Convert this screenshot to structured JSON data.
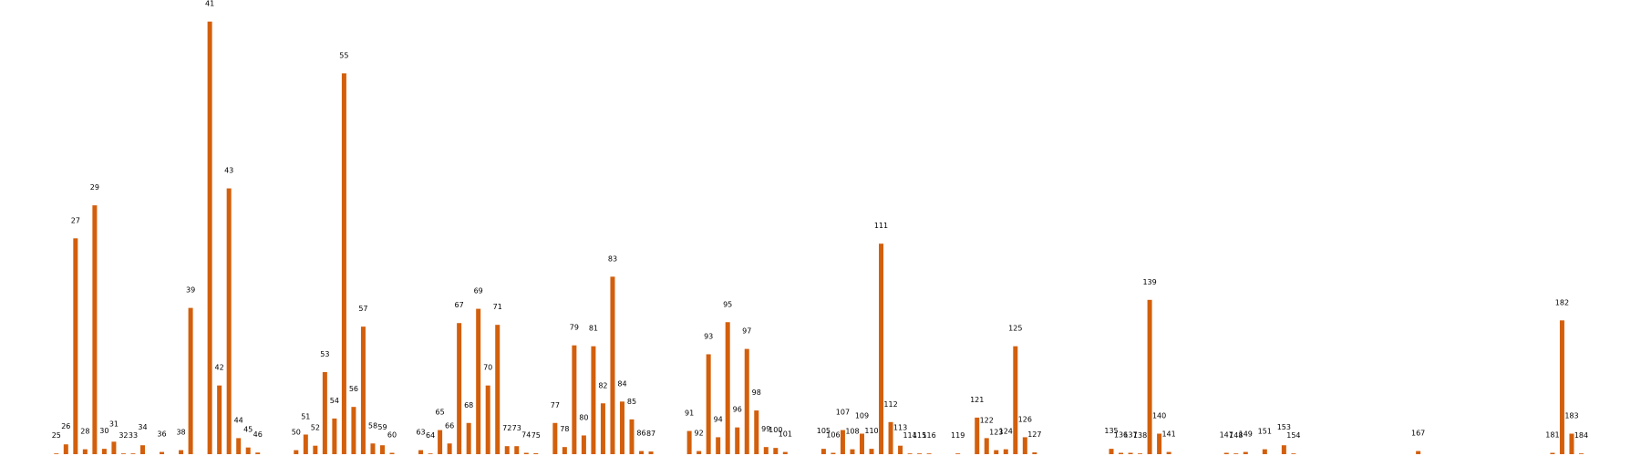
{
  "chart_data": {
    "type": "bar",
    "color": "#d35f0c",
    "x": [
      25,
      26,
      27,
      28,
      29,
      30,
      31,
      32,
      33,
      34,
      36,
      38,
      39,
      41,
      42,
      43,
      44,
      45,
      46,
      50,
      51,
      52,
      53,
      54,
      55,
      56,
      57,
      58,
      59,
      60,
      63,
      64,
      65,
      66,
      67,
      68,
      69,
      70,
      71,
      72,
      73,
      74,
      75,
      77,
      78,
      79,
      80,
      81,
      82,
      83,
      84,
      85,
      86,
      87,
      91,
      92,
      93,
      94,
      95,
      96,
      97,
      98,
      99,
      100,
      101,
      105,
      106,
      107,
      108,
      109,
      110,
      111,
      112,
      113,
      114,
      115,
      116,
      119,
      121,
      122,
      123,
      124,
      125,
      126,
      127,
      135,
      136,
      137,
      138,
      139,
      140,
      141,
      147,
      148,
      149,
      151,
      153,
      154,
      167,
      181,
      182,
      183,
      184
    ],
    "values": [
      0.08,
      1.1,
      24.2,
      0.55,
      27.9,
      0.6,
      1.4,
      0.08,
      0.08,
      1.0,
      0.25,
      0.45,
      16.4,
      48.5,
      7.7,
      29.8,
      1.8,
      0.75,
      0.18,
      0.45,
      2.2,
      0.95,
      9.2,
      4.0,
      42.7,
      5.3,
      14.3,
      1.2,
      1.0,
      0.15,
      0.45,
      0.08,
      2.7,
      1.2,
      14.7,
      3.5,
      16.3,
      7.7,
      14.5,
      0.9,
      0.9,
      0.15,
      0.1,
      3.5,
      0.8,
      12.2,
      2.1,
      12.1,
      5.7,
      19.9,
      5.9,
      3.9,
      0.35,
      0.3,
      2.6,
      0.35,
      11.2,
      1.9,
      14.8,
      3.0,
      11.8,
      4.9,
      0.8,
      0.7,
      0.25,
      0.6,
      0.15,
      2.7,
      0.55,
      2.3,
      0.6,
      23.6,
      3.6,
      0.95,
      0.08,
      0.08,
      0.08,
      0.08,
      4.1,
      1.8,
      0.45,
      0.55,
      12.1,
      1.9,
      0.2,
      0.6,
      0.15,
      0.15,
      0.08,
      17.3,
      2.3,
      0.25,
      0.15,
      0.08,
      0.25,
      0.55,
      1.0,
      0.08,
      0.35,
      0.15,
      15.0,
      2.3,
      0.08
    ]
  }
}
